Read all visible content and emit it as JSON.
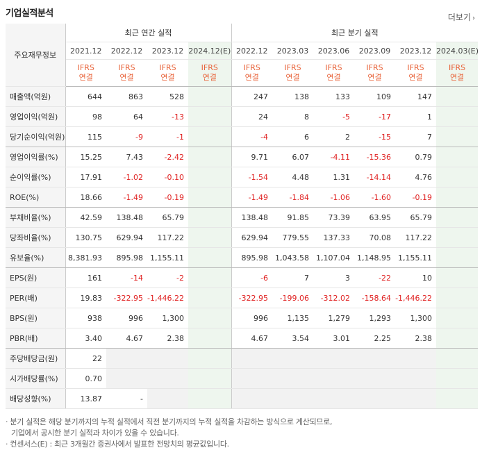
{
  "title": "기업실적분석",
  "more_label": "더보기",
  "header": {
    "row_label": "주요재무정보",
    "annual_group": "최근 연간 실적",
    "quarter_group": "최근 분기 실적",
    "annual_periods": [
      "2021.12",
      "2022.12",
      "2023.12",
      "2024.12(E)"
    ],
    "quarter_periods": [
      "2022.12",
      "2023.03",
      "2023.06",
      "2023.09",
      "2023.12",
      "2024.03(E)"
    ],
    "ifrs_line1": "IFRS",
    "ifrs_line2": "연결"
  },
  "rows": [
    {
      "label": "매출액(억원)",
      "annual": [
        "644",
        "863",
        "528",
        ""
      ],
      "quarter": [
        "247",
        "138",
        "133",
        "109",
        "147",
        ""
      ]
    },
    {
      "label": "영업이익(억원)",
      "annual": [
        "98",
        "64",
        "-13",
        ""
      ],
      "quarter": [
        "24",
        "8",
        "-5",
        "-17",
        "1",
        ""
      ]
    },
    {
      "label": "당기순이익(억원)",
      "annual": [
        "115",
        "-9",
        "-1",
        ""
      ],
      "quarter": [
        "-4",
        "6",
        "2",
        "-15",
        "7",
        ""
      ]
    },
    {
      "label": "영업이익률(%)",
      "annual": [
        "15.25",
        "7.43",
        "-2.42",
        ""
      ],
      "quarter": [
        "9.71",
        "6.07",
        "-4.11",
        "-15.36",
        "0.79",
        ""
      ]
    },
    {
      "label": "순이익률(%)",
      "annual": [
        "17.91",
        "-1.02",
        "-0.10",
        ""
      ],
      "quarter": [
        "-1.54",
        "4.48",
        "1.31",
        "-14.14",
        "4.76",
        ""
      ]
    },
    {
      "label": "ROE(%)",
      "annual": [
        "18.66",
        "-1.49",
        "-0.19",
        ""
      ],
      "quarter": [
        "-1.49",
        "-1.84",
        "-1.06",
        "-1.60",
        "-0.19",
        ""
      ]
    },
    {
      "label": "부채비율(%)",
      "annual": [
        "42.59",
        "138.48",
        "65.79",
        ""
      ],
      "quarter": [
        "138.48",
        "91.85",
        "73.39",
        "63.95",
        "65.79",
        ""
      ]
    },
    {
      "label": "당좌비율(%)",
      "annual": [
        "130.75",
        "629.94",
        "117.22",
        ""
      ],
      "quarter": [
        "629.94",
        "779.55",
        "137.33",
        "70.08",
        "117.22",
        ""
      ]
    },
    {
      "label": "유보율(%)",
      "annual": [
        "8,381.93",
        "895.98",
        "1,155.11",
        ""
      ],
      "quarter": [
        "895.98",
        "1,043.58",
        "1,107.04",
        "1,148.95",
        "1,155.11",
        ""
      ]
    },
    {
      "label": "EPS(원)",
      "annual": [
        "161",
        "-14",
        "-2",
        ""
      ],
      "quarter": [
        "-6",
        "7",
        "3",
        "-22",
        "10",
        ""
      ]
    },
    {
      "label": "PER(배)",
      "annual": [
        "19.83",
        "-322.95",
        "-1,446.22",
        ""
      ],
      "quarter": [
        "-322.95",
        "-199.06",
        "-312.02",
        "-158.64",
        "-1,446.22",
        ""
      ]
    },
    {
      "label": "BPS(원)",
      "annual": [
        "938",
        "996",
        "1,300",
        ""
      ],
      "quarter": [
        "996",
        "1,135",
        "1,279",
        "1,293",
        "1,300",
        ""
      ]
    },
    {
      "label": "PBR(배)",
      "annual": [
        "3.40",
        "4.67",
        "2.38",
        ""
      ],
      "quarter": [
        "4.67",
        "3.54",
        "3.01",
        "2.25",
        "2.38",
        ""
      ]
    },
    {
      "label": "주당배당금(원)",
      "annual": [
        "22",
        "",
        "",
        ""
      ],
      "quarter": [
        "",
        "",
        "",
        "",
        "",
        ""
      ]
    },
    {
      "label": "시가배당률(%)",
      "annual": [
        "0.70",
        "",
        "",
        ""
      ],
      "quarter": [
        "",
        "",
        "",
        "",
        "",
        ""
      ]
    },
    {
      "label": "배당성향(%)",
      "annual": [
        "13.87",
        "-",
        "",
        ""
      ],
      "quarter": [
        "",
        "",
        "",
        "",
        "",
        ""
      ]
    }
  ],
  "notes": [
    "분기 실적은 해당 분기까지의 누적 실적에서 직전 분기까지의 누적 실적을 차감하는 방식으로 계산되므로,",
    "기업에서 공시한 분기 실적과 차이가 있을 수 있습니다.",
    "컨센서스(E) : 최근 3개월간 증권사에서 발표한 전망치의 평균값입니다."
  ],
  "colors": {
    "negative": "#e02020",
    "ifrs": "#e8633a",
    "estimate_bg": "#eef6ee",
    "header_bg": "#f5f5f5"
  }
}
